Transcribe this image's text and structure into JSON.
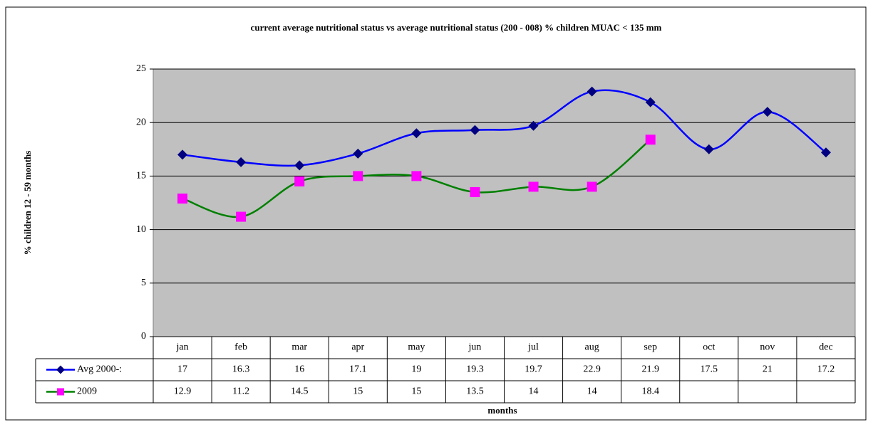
{
  "chart_data": {
    "type": "line",
    "title": "current average nutritional status vs average nutritional status (200 - 008) % children MUAC < 135 mm",
    "x_label": "months",
    "y_label": "% children 12 - 59 months",
    "categories": [
      "jan",
      "feb",
      "mar",
      "apr",
      "may",
      "jun",
      "jul",
      "aug",
      "sep",
      "oct",
      "nov",
      "dec"
    ],
    "series": [
      {
        "name": "Avg 2000-:",
        "color": "#0000ff",
        "marker_color": "#000080",
        "marker": "diamond",
        "values": [
          17,
          16.3,
          16,
          17.1,
          19,
          19.3,
          19.7,
          22.9,
          21.9,
          17.5,
          21,
          17.2
        ]
      },
      {
        "name": "2009",
        "color": "#008000",
        "marker_color": "#ff00ff",
        "marker": "square",
        "values": [
          12.9,
          11.2,
          14.5,
          15,
          15,
          13.5,
          14,
          14,
          18.4,
          null,
          null,
          null
        ]
      }
    ],
    "ylim": [
      0,
      25
    ],
    "yticks": [
      0,
      5,
      10,
      15,
      20,
      25
    ],
    "grid": true,
    "plot_background": "#c0c0c0"
  }
}
